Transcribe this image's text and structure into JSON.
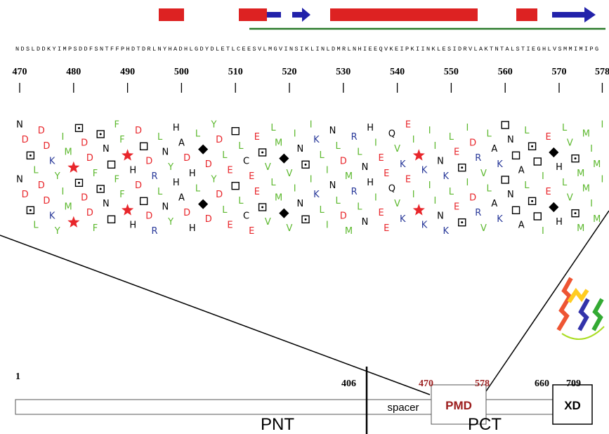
{
  "sequence": {
    "residues": [
      "N",
      "D",
      "S",
      "L",
      "D",
      "D",
      "K",
      "Y",
      "I",
      "M",
      "P",
      "S",
      "D",
      "D",
      "F",
      "S",
      "N",
      "T",
      "F",
      "F",
      "P",
      "H",
      "D",
      "T",
      "D",
      "R",
      "L",
      "N",
      "Y",
      "H",
      "A",
      "D",
      "H",
      "L",
      "G",
      "D",
      "Y",
      "D",
      "L",
      "E",
      "T",
      "L",
      "C",
      "E",
      "E",
      "S",
      "V",
      "L",
      "M",
      "G",
      "V",
      "I",
      "N",
      "S",
      "I",
      "K",
      "L",
      "I",
      "N",
      "L",
      "D",
      "M",
      "R",
      "L",
      "N",
      "H",
      "I",
      "E",
      "E",
      "Q",
      "V",
      "K",
      "E",
      "I",
      "P",
      "K",
      "I",
      "I",
      "N",
      "K",
      "L",
      "E",
      "S",
      "I",
      "D",
      "R",
      "V",
      "L",
      "A",
      "K",
      "T",
      "N",
      "T",
      "A",
      "L",
      "S",
      "T",
      "I",
      "E",
      "G",
      "H",
      "L",
      "V",
      "S",
      "M",
      "M",
      "I",
      "M",
      "I",
      "P",
      "G"
    ],
    "ticks": [
      470,
      480,
      490,
      500,
      510,
      520,
      530,
      540,
      550,
      560,
      570,
      578
    ]
  },
  "domain_map": {
    "positions": [
      1,
      406,
      470,
      578,
      660,
      709
    ],
    "spacer": "spacer",
    "pmd": "PMD",
    "xd": "XD",
    "pnt": "PNT",
    "pct": "PCT"
  }
}
